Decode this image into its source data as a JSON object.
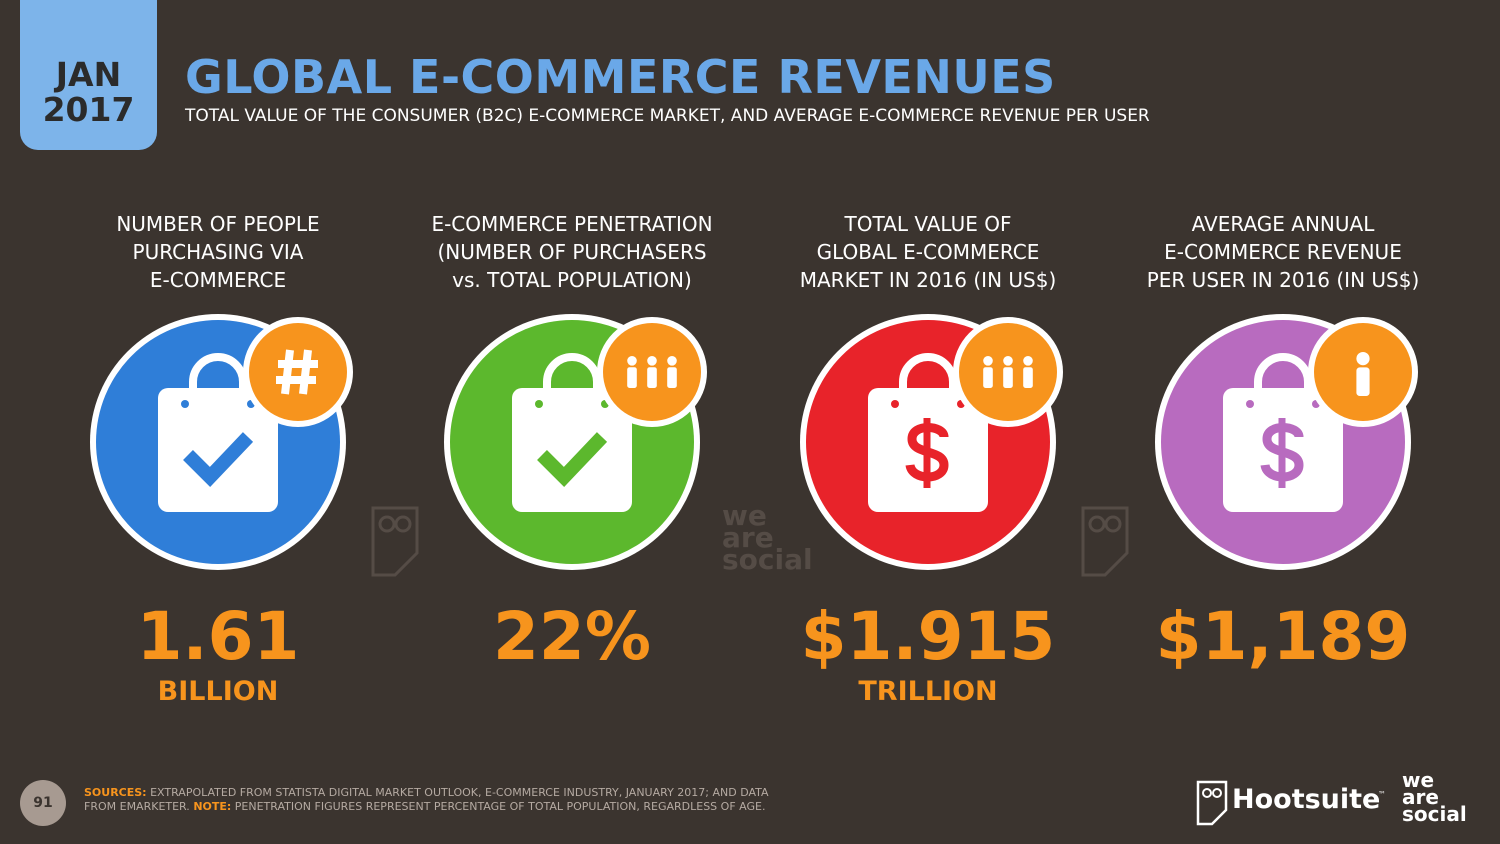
{
  "header": {
    "badge": [
      "JAN",
      "2017"
    ],
    "title": "GLOBAL E-COMMERCE REVENUES",
    "subtitle": "TOTAL VALUE OF THE CONSUMER (B2C) E-COMMERCE MARKET, AND AVERAGE E-COMMERCE REVENUE PER USER"
  },
  "stats": [
    {
      "label": [
        "NUMBER OF PEOPLE",
        "PURCHASING VIA",
        "E-COMMERCE"
      ],
      "value": "1.61",
      "unit": "BILLION"
    },
    {
      "label": [
        "E-COMMERCE PENETRATION",
        "(NUMBER OF PURCHASERS",
        "vs. TOTAL POPULATION)"
      ],
      "value": "22%"
    },
    {
      "label": [
        "TOTAL VALUE OF",
        "GLOBAL E-COMMERCE",
        "MARKET IN 2016 (IN US$)"
      ],
      "value": "$1.915",
      "unit": "TRILLION"
    },
    {
      "label": [
        "AVERAGE ANNUAL",
        "E-COMMERCE REVENUE",
        "PER USER IN 2016 (IN US$)"
      ],
      "value": "$1,189"
    }
  ],
  "watermark": [
    "we",
    "are",
    "social"
  ],
  "footer": {
    "page": "91",
    "sources_key": "SOURCES:",
    "sources": "EXTRAPOLATED FROM STATISTA DIGITAL MARKET OUTLOOK, E-COMMERCE INDUSTRY, JANUARY 2017; AND DATA FROM EMARKETER.",
    "note_key": "NOTE:",
    "note": "PENETRATION FIGURES REPRESENT PERCENTAGE OF TOTAL POPULATION, REGARDLESS OF AGE.",
    "logo_hootsuite": "Hootsuite",
    "logo_tm": "™",
    "logo_social": [
      "we",
      "are",
      "social"
    ]
  }
}
